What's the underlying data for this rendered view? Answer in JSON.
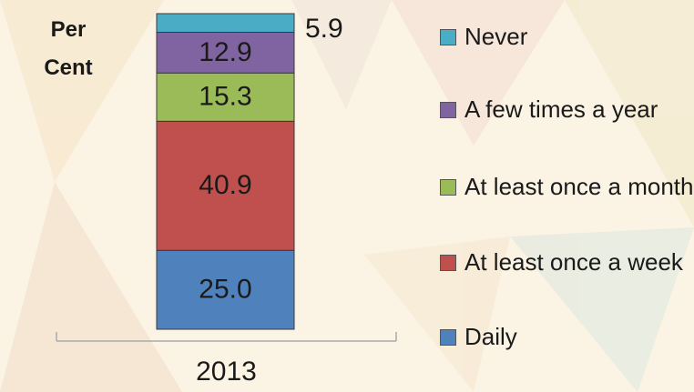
{
  "chart_data": {
    "type": "stacked_bar",
    "y_label": "Per Cent",
    "categories": [
      "2013"
    ],
    "series": [
      {
        "name": "Daily",
        "color": "#4f81bd",
        "values": [
          25.0
        ],
        "value_labels": [
          "25.0"
        ]
      },
      {
        "name": "At least once a week",
        "color": "#c0504d",
        "values": [
          40.9
        ]
      },
      {
        "name": "At least once a month",
        "color": "#9bbb59",
        "values": [
          15.3
        ]
      },
      {
        "name": "A few times a year",
        "color": "#8064a2",
        "values": [
          12.9
        ]
      },
      {
        "name": "Never",
        "color": "#4bacc6",
        "values": [
          5.9
        ]
      }
    ],
    "ylim": [
      0,
      100
    ],
    "legend": "right"
  }
}
